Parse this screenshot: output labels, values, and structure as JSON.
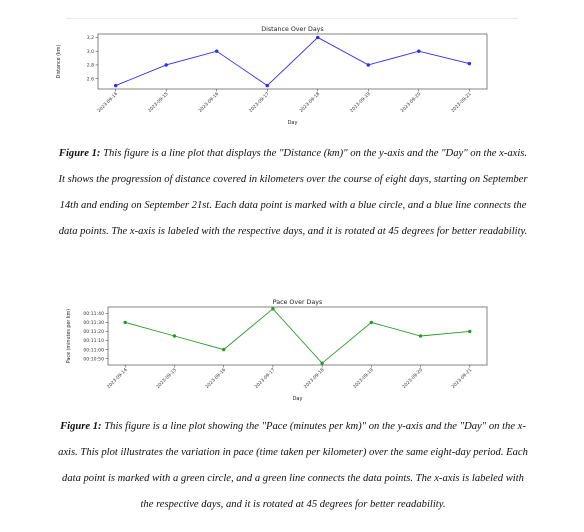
{
  "charts": [
    {
      "chart_data": {
        "type": "line",
        "title": "Distance Over Days",
        "xlabel": "Day",
        "ylabel": "Distance (km)",
        "categories": [
          "2023-09-14",
          "2023-09-15",
          "2023-09-16",
          "2023-09-17",
          "2023-09-18",
          "2023-09-19",
          "2023-09-20",
          "2023-09-21"
        ],
        "series": [
          {
            "values": [
              2.5,
              2.8,
              3.0,
              2.5,
              3.2,
              2.8,
              3.0,
              2.82
            ]
          }
        ],
        "ylim": [
          2.45,
          3.25
        ],
        "yticks": [
          "2.6",
          "2.8",
          "3.0",
          "3.2"
        ],
        "ytick_values": [
          2.6,
          2.8,
          3.0,
          3.2
        ],
        "color": "#2b2bff",
        "grid": false
      },
      "caption": {
        "label": "Figure 1:",
        "text": "This figure is a line plot that displays the \"Distance (km)\" on the y-axis and the \"Day\" on the x-axis. It shows the progression of distance covered in kilometers over the course of eight days, starting on September 14th and ending on September 21st. Each data point is marked with a blue circle, and a blue line connects the data points. The x-axis is labeled with the respective days, and it is rotated at 45 degrees for better readability."
      }
    },
    {
      "chart_data": {
        "type": "line",
        "title": "Pace Over Days",
        "xlabel": "Day",
        "ylabel": "Pace (minutes per km)",
        "categories": [
          "2023-09-14",
          "2023-09-15",
          "2023-09-16",
          "2023-09-17",
          "2023-09-18",
          "2023-09-19",
          "2023-09-20",
          "2023-09-21"
        ],
        "series": [
          {
            "values": [
              "00:11:30",
              "00:11:15",
              "00:11:00",
              "00:11:45",
              "00:10:45",
              "00:11:30",
              "00:11:15",
              "00:11:20"
            ]
          }
        ],
        "ylim": [
          "00:10:43",
          "00:11:47"
        ],
        "yticks": [
          "00:10:50",
          "00:11:00",
          "00:11:10",
          "00:11:20",
          "00:11:30",
          "00:11:40"
        ],
        "color": "#2a9a2a",
        "grid": false
      },
      "caption": {
        "label": "Figure 1:",
        "text": "This figure is a line plot showing the \"Pace (minutes per km)\" on the y-axis and the \"Day\" on the x-axis. This plot illustrates the variation in pace (time taken per kilometer) over the same eight-day period. Each data point is marked with a green circle, and a green line connects the data points. The x-axis is labeled with the respective days, and it is rotated at 45 degrees for better readability."
      }
    }
  ]
}
